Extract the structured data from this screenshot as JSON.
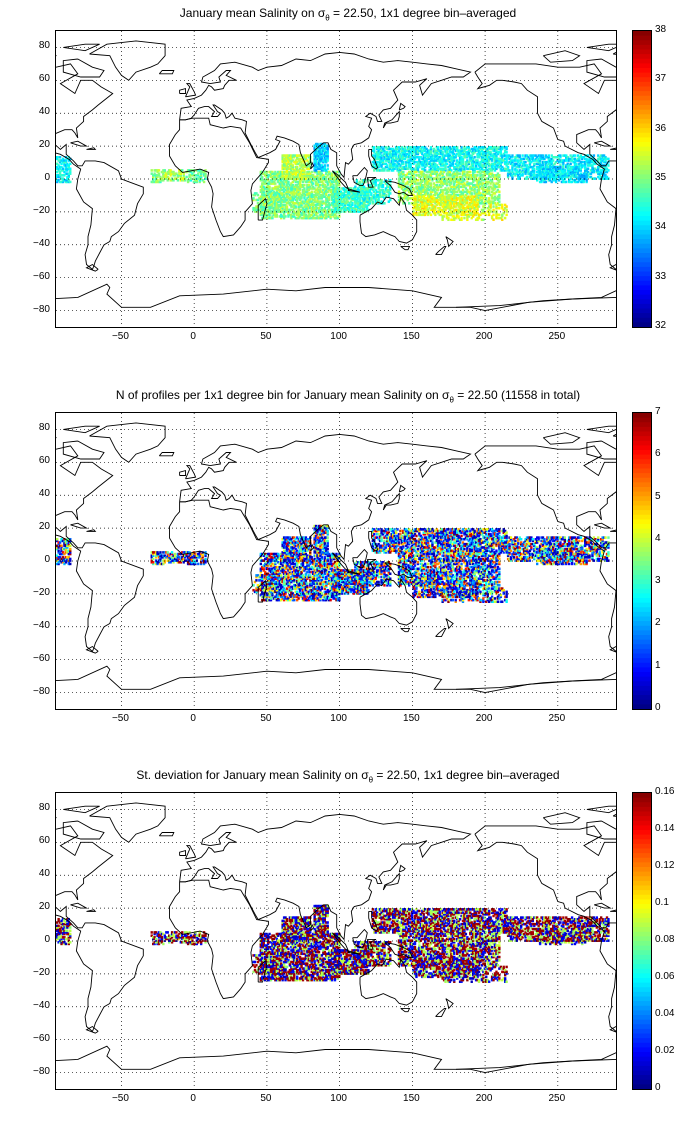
{
  "panels": [
    {
      "title_prefix": "January mean Salinity on σ",
      "title_sub": "θ",
      "title_suffix": " = 22.50, 1x1 degree bin–averaged",
      "colorbar_ticks": [
        "38",
        "37",
        "36",
        "35",
        "34",
        "33",
        "32"
      ],
      "colorbar_range": [
        32,
        38
      ]
    },
    {
      "title_prefix": "N of profiles per 1x1 degree bin for January mean Salinity on σ",
      "title_sub": "θ",
      "title_suffix": " = 22.50 (11558 in total)",
      "colorbar_ticks": [
        "7",
        "6",
        "5",
        "4",
        "3",
        "2",
        "1",
        "0"
      ],
      "colorbar_range": [
        0,
        7
      ]
    },
    {
      "title_prefix": "St. deviation for January mean Salinity on σ",
      "title_sub": "θ",
      "title_suffix": " = 22.50, 1x1 degree bin–averaged",
      "colorbar_ticks": [
        "0.16",
        "0.14",
        "0.12",
        "0.1",
        "0.08",
        "0.06",
        "0.04",
        "0.02",
        "0"
      ],
      "colorbar_range": [
        0,
        0.16
      ]
    }
  ],
  "x_ticks": [
    "−50",
    "0",
    "50",
    "100",
    "150",
    "200",
    "250"
  ],
  "y_ticks": [
    "80",
    "60",
    "40",
    "20",
    "0",
    "−20",
    "−40",
    "−60",
    "−80"
  ],
  "map_extent": {
    "lon": [
      -95,
      290
    ],
    "lat": [
      -90,
      90
    ]
  },
  "grid": "dotted",
  "colormap": "jet"
}
